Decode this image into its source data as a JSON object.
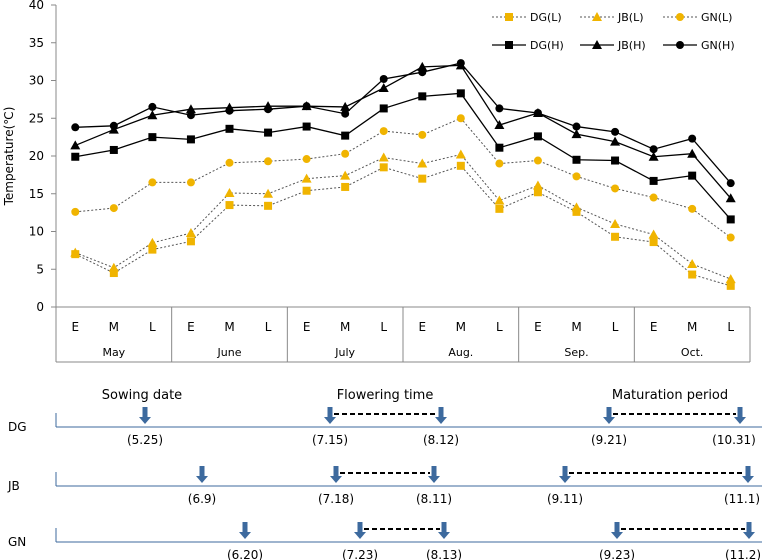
{
  "chart_data": {
    "type": "line",
    "ylabel": "Temperature(℃)",
    "ylim": [
      0,
      40
    ],
    "yticks": [
      0,
      5,
      10,
      15,
      20,
      25,
      30,
      35,
      40
    ],
    "x": [
      "E",
      "M",
      "L",
      "E",
      "M",
      "L",
      "E",
      "M",
      "L",
      "E",
      "M",
      "L",
      "E",
      "M",
      "L",
      "E",
      "M",
      "L"
    ],
    "months": [
      "May",
      "June",
      "July",
      "Aug.",
      "Sep.",
      "Oct."
    ],
    "grid": false,
    "legend_position": "top-right",
    "series": [
      {
        "name": "DG(L)",
        "color": "#f0b400",
        "marker": "square",
        "dashed": true,
        "values": [
          7.0,
          4.5,
          7.6,
          8.7,
          13.5,
          13.4,
          15.4,
          15.9,
          18.5,
          17.0,
          18.7,
          13.0,
          15.2,
          12.6,
          9.3,
          8.6,
          4.3,
          2.8
        ]
      },
      {
        "name": "JB(L)",
        "color": "#f0b400",
        "marker": "triangle",
        "dashed": true,
        "values": [
          7.2,
          5.2,
          8.5,
          9.8,
          15.1,
          15.0,
          17.0,
          17.4,
          19.8,
          19.0,
          20.2,
          14.1,
          16.1,
          13.2,
          11.0,
          9.6,
          5.7,
          3.7
        ]
      },
      {
        "name": "GN(L)",
        "color": "#f0b400",
        "marker": "circle",
        "dashed": true,
        "values": [
          12.6,
          13.1,
          16.5,
          16.5,
          19.1,
          19.3,
          19.6,
          20.3,
          23.3,
          22.8,
          25.0,
          19.0,
          19.4,
          17.3,
          15.7,
          14.5,
          13.0,
          9.2
        ]
      },
      {
        "name": "DG(H)",
        "color": "#000000",
        "marker": "square",
        "dashed": false,
        "values": [
          19.9,
          20.8,
          22.5,
          22.2,
          23.6,
          23.1,
          23.9,
          22.7,
          26.3,
          27.9,
          28.3,
          21.1,
          22.6,
          19.5,
          19.4,
          16.7,
          17.4,
          11.6
        ]
      },
      {
        "name": "JB(H)",
        "color": "#000000",
        "marker": "triangle",
        "dashed": false,
        "values": [
          21.4,
          23.5,
          25.4,
          26.2,
          26.4,
          26.6,
          26.6,
          26.5,
          29.0,
          31.8,
          32.0,
          24.1,
          25.7,
          22.9,
          21.9,
          19.9,
          20.3,
          14.4
        ]
      },
      {
        "name": "GN(H)",
        "color": "#000000",
        "marker": "circle",
        "dashed": false,
        "values": [
          23.8,
          24.0,
          26.5,
          25.4,
          26.0,
          26.2,
          26.6,
          25.6,
          30.2,
          31.1,
          32.3,
          26.3,
          25.7,
          23.9,
          23.2,
          20.9,
          22.3,
          16.4
        ]
      }
    ]
  },
  "timeline": {
    "rows": [
      {
        "label": "DG",
        "sowing": "(5.25)",
        "flowering": [
          "(7.15)",
          "(8.12)"
        ],
        "maturation": [
          "(9.21)",
          "(10.31)"
        ]
      },
      {
        "label": "JB",
        "sowing": "(6.9)",
        "flowering": [
          "(7.18)",
          "(8.11)"
        ],
        "maturation": [
          "(9.11)",
          "(11.1)"
        ]
      },
      {
        "label": "GN",
        "sowing": "(6.20)",
        "flowering": [
          "(7.23)",
          "(8.13)"
        ],
        "maturation": [
          "(9.23)",
          "(11.2)"
        ]
      }
    ],
    "headers": {
      "sowing": "Sowing date",
      "flowering": "Flowering time",
      "maturation": "Maturation period"
    },
    "arrow_color": "#3d6a9e",
    "line_color": "#3d6a9e"
  }
}
